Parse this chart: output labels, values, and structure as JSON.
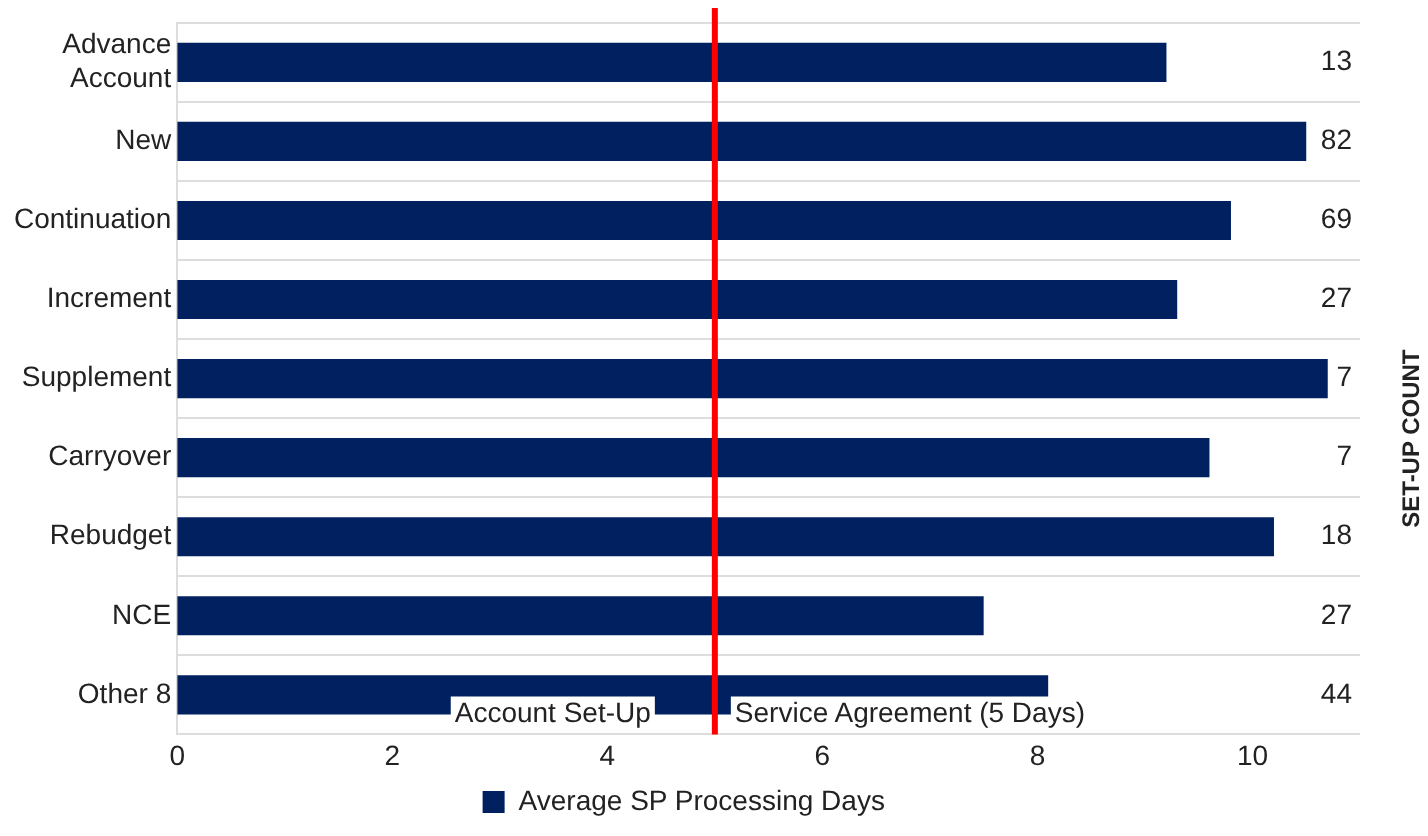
{
  "chart_data": {
    "type": "bar",
    "orientation": "horizontal",
    "categories": [
      "Advance Account",
      "New",
      "Continuation",
      "Increment",
      "Supplement",
      "Carryover",
      "Rebudget",
      "NCE",
      "Other 8"
    ],
    "series": [
      {
        "name": "Average SP Processing Days",
        "color": "#002060",
        "values": [
          9.2,
          10.5,
          9.8,
          9.3,
          10.7,
          9.6,
          10.2,
          7.5,
          8.1
        ]
      }
    ],
    "xlim": [
      0,
      11
    ],
    "xticks": [
      0,
      2,
      4,
      6,
      8,
      10
    ],
    "y2label": "SET-UP COUNT",
    "annotations": [
      "13",
      "82",
      "69",
      "27",
      "7",
      "7",
      "18",
      "27",
      "44",
      "Account Set-Up"
    ],
    "ref_lines": [
      {
        "axis": "x",
        "value": 5,
        "label": "Service Agreement (5 Days)",
        "color": "#ff0000"
      }
    ],
    "grid": "y",
    "legend": "bottom"
  }
}
